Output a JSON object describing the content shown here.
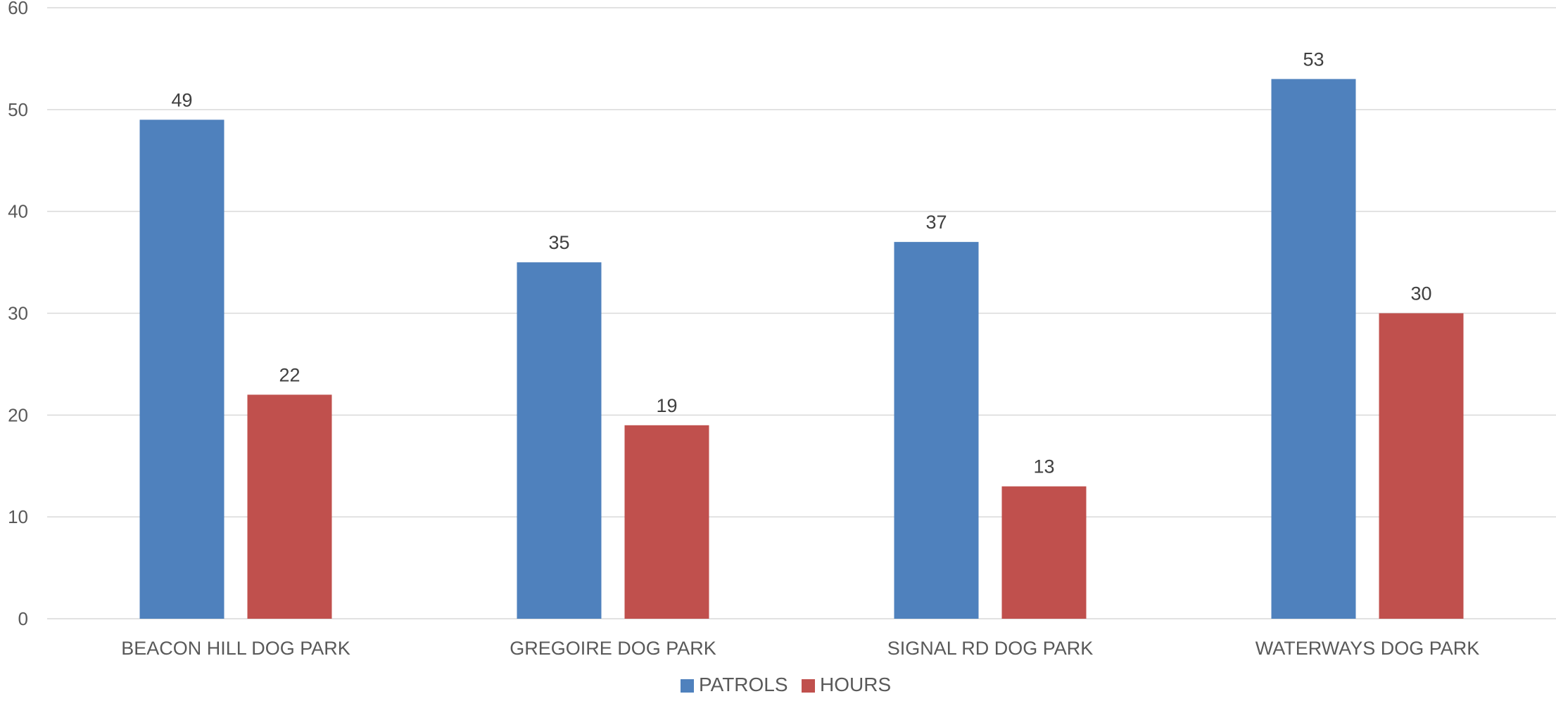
{
  "chart_data": {
    "type": "bar",
    "title": "",
    "xlabel": "",
    "ylabel": "",
    "categories": [
      "BEACON HILL DOG PARK",
      "GREGOIRE DOG PARK",
      "SIGNAL RD DOG PARK",
      "WATERWAYS DOG PARK"
    ],
    "series": [
      {
        "name": "PATROLS",
        "color": "#4f81bd",
        "values": [
          49,
          35,
          37,
          53
        ]
      },
      {
        "name": "HOURS",
        "color": "#c0504d",
        "values": [
          22,
          19,
          13,
          30
        ]
      }
    ],
    "ylim": [
      0,
      60
    ],
    "yticks": [
      0,
      10,
      20,
      30,
      40,
      50,
      60
    ],
    "grid": true,
    "legend_position": "bottom-center",
    "data_labels": true
  }
}
